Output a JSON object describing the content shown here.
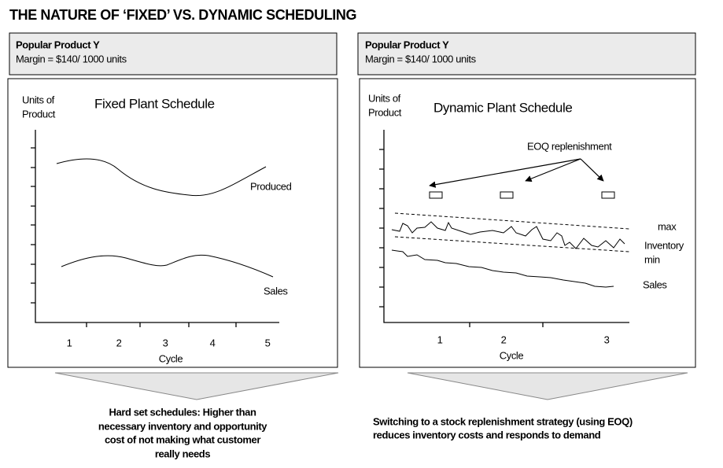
{
  "title": "THE NATURE OF ‘FIXED’ VS. DYNAMIC SCHEDULING",
  "left": {
    "header": {
      "product": "Popular Product Y",
      "margin": "Margin = $140/ 1000 units"
    },
    "y_label": [
      "Units of",
      "Product"
    ],
    "chart_title": "Fixed Plant Schedule",
    "series_labels": [
      "Produced",
      "Sales"
    ],
    "x_ticks": [
      "1",
      "2",
      "3",
      "4",
      "5"
    ],
    "x_label": "Cycle",
    "caption": [
      "Hard set schedules: Higher than",
      "necessary inventory and opportunity",
      "cost of not making what customer",
      "really needs"
    ]
  },
  "right": {
    "header": {
      "product": "Popular Product Y",
      "margin": "Margin = $140/ 1000 units"
    },
    "y_label": [
      "Units of",
      "Product"
    ],
    "chart_title": "Dynamic Plant Schedule",
    "annotation": "EOQ replenishment",
    "series_labels": [
      "max",
      "Inventory",
      "min",
      "Sales"
    ],
    "x_ticks": [
      "1",
      "2",
      "3"
    ],
    "x_label": "Cycle",
    "caption": [
      "Switching to a stock replenishment strategy (using EOQ)",
      "reduces inventory costs and responds to demand"
    ]
  }
}
